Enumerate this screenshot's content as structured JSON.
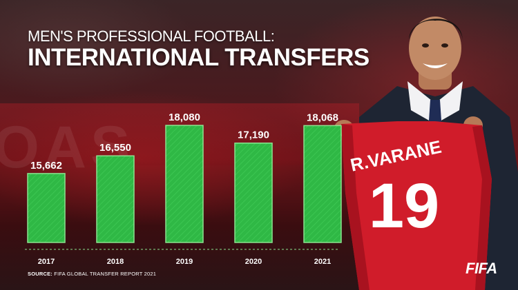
{
  "header": {
    "subtitle": "MEN'S PROFESSIONAL FOOTBALL:",
    "title": "INTERNATIONAL TRANSFERS"
  },
  "source": {
    "label": "SOURCE:",
    "text": "FIFA GLOBAL TRANSFER REPORT 2021"
  },
  "logo": {
    "text": "FIFA"
  },
  "jersey": {
    "name": "R.VARANE",
    "number": "19"
  },
  "colors": {
    "bar_fill": "#2fb845",
    "bar_stroke": "#8be38f",
    "text": "#ffffff",
    "jersey_red": "#d01c2a",
    "suit": "#1e2533"
  },
  "chart_data": {
    "type": "bar",
    "title": "INTERNATIONAL TRANSFERS",
    "subtitle": "MEN'S PROFESSIONAL FOOTBALL:",
    "categories": [
      "2017",
      "2018",
      "2019",
      "2020",
      "2021"
    ],
    "values": [
      15662,
      16550,
      18080,
      17190,
      18068
    ],
    "value_labels": [
      "15,662",
      "16,550",
      "18,080",
      "17,190",
      "18,068"
    ],
    "xlabel": "",
    "ylabel": "",
    "grid": false,
    "legend": "none",
    "baseline_style": "dashed"
  }
}
